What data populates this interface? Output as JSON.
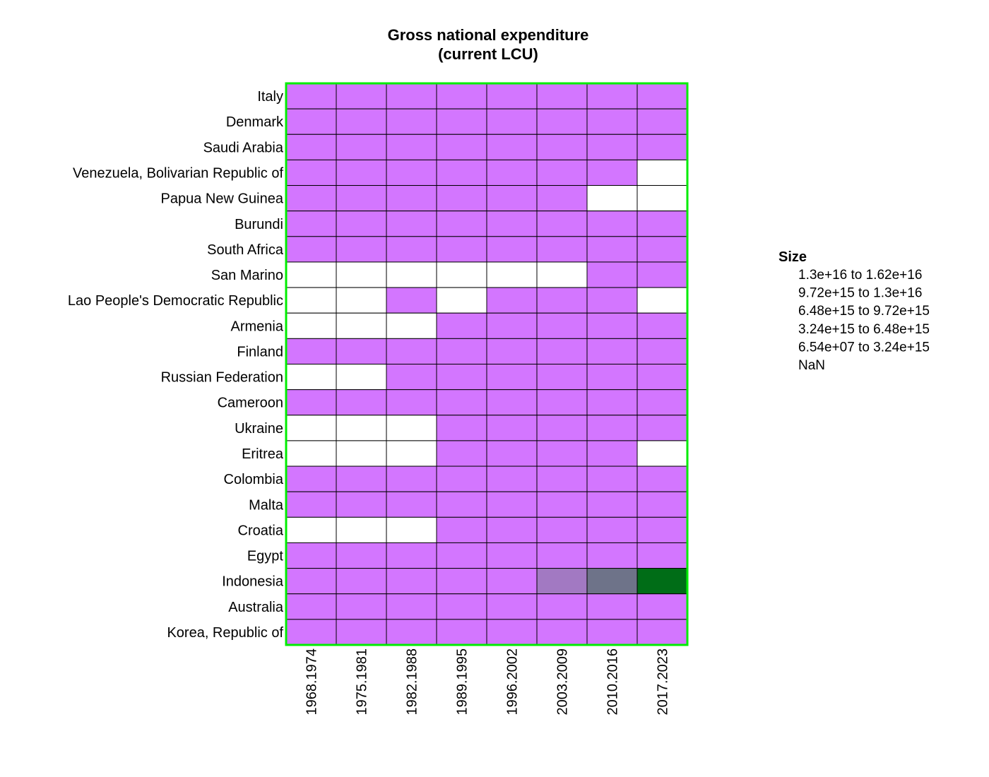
{
  "chart_data": {
    "type": "heatmap",
    "title": [
      "Gross national expenditure",
      "(current LCU)"
    ],
    "columns": [
      "1968.1974",
      "1975.1981",
      "1982.1988",
      "1989.1995",
      "1996.2002",
      "2003.2009",
      "2010.2016",
      "2017.2023"
    ],
    "rows": [
      "Italy",
      "Denmark",
      "Saudi Arabia",
      "Venezuela, Bolivarian Republic of",
      "Papua New Guinea",
      "Burundi",
      "South Africa",
      "San Marino",
      "Lao People's Democratic Republic",
      "Armenia",
      "Finland",
      "Russian Federation",
      "Cameroon",
      "Ukraine",
      "Eritrea",
      "Colombia",
      "Malta",
      "Croatia",
      "Egypt",
      "Indonesia",
      "Australia",
      "Korea, Republic of"
    ],
    "bins": [
      [
        0,
        0,
        0,
        0,
        0,
        0,
        0,
        0
      ],
      [
        0,
        0,
        0,
        0,
        0,
        0,
        0,
        0
      ],
      [
        0,
        0,
        0,
        0,
        0,
        0,
        0,
        0
      ],
      [
        0,
        0,
        0,
        0,
        0,
        0,
        0,
        -1
      ],
      [
        0,
        0,
        0,
        0,
        0,
        0,
        -1,
        -1
      ],
      [
        0,
        0,
        0,
        0,
        0,
        0,
        0,
        0
      ],
      [
        0,
        0,
        0,
        0,
        0,
        0,
        0,
        0
      ],
      [
        -1,
        -1,
        -1,
        -1,
        -1,
        -1,
        0,
        0
      ],
      [
        -1,
        -1,
        0,
        -1,
        0,
        0,
        0,
        -1
      ],
      [
        -1,
        -1,
        -1,
        0,
        0,
        0,
        0,
        0
      ],
      [
        0,
        0,
        0,
        0,
        0,
        0,
        0,
        0
      ],
      [
        -1,
        -1,
        0,
        0,
        0,
        0,
        0,
        0
      ],
      [
        0,
        0,
        0,
        0,
        0,
        0,
        0,
        0
      ],
      [
        -1,
        -1,
        -1,
        0,
        0,
        0,
        0,
        0
      ],
      [
        -1,
        -1,
        -1,
        0,
        0,
        0,
        0,
        -1
      ],
      [
        0,
        0,
        0,
        0,
        0,
        0,
        0,
        0
      ],
      [
        0,
        0,
        0,
        0,
        0,
        0,
        0,
        0
      ],
      [
        -1,
        -1,
        -1,
        0,
        0,
        0,
        0,
        0
      ],
      [
        0,
        0,
        0,
        0,
        0,
        0,
        0,
        0
      ],
      [
        0,
        0,
        0,
        0,
        0,
        1,
        2,
        4
      ],
      [
        0,
        0,
        0,
        0,
        0,
        0,
        0,
        0
      ],
      [
        0,
        0,
        0,
        0,
        0,
        0,
        0,
        0
      ]
    ],
    "legend": {
      "title": "Size",
      "entries": [
        {
          "from": "1.3e+16",
          "to": "1.62e+16"
        },
        {
          "from": "9.72e+15",
          "to": "1.3e+16"
        },
        {
          "from": "6.48e+15",
          "to": "9.72e+15"
        },
        {
          "from": "3.24e+15",
          "to": "6.48e+15"
        },
        {
          "from": "6.54e+07",
          "to": "3.24e+15"
        },
        {
          "from": "NaN",
          "to": ""
        }
      ],
      "connector": "to",
      "placement": "right"
    },
    "bin_colors": [
      "#d376ff",
      "#a279c2",
      "#6e7389",
      "#3a7b4d",
      "#006d17"
    ],
    "nan_color": "#ffffff",
    "grid_color": "#000000",
    "frame_color": "#00ee00"
  }
}
